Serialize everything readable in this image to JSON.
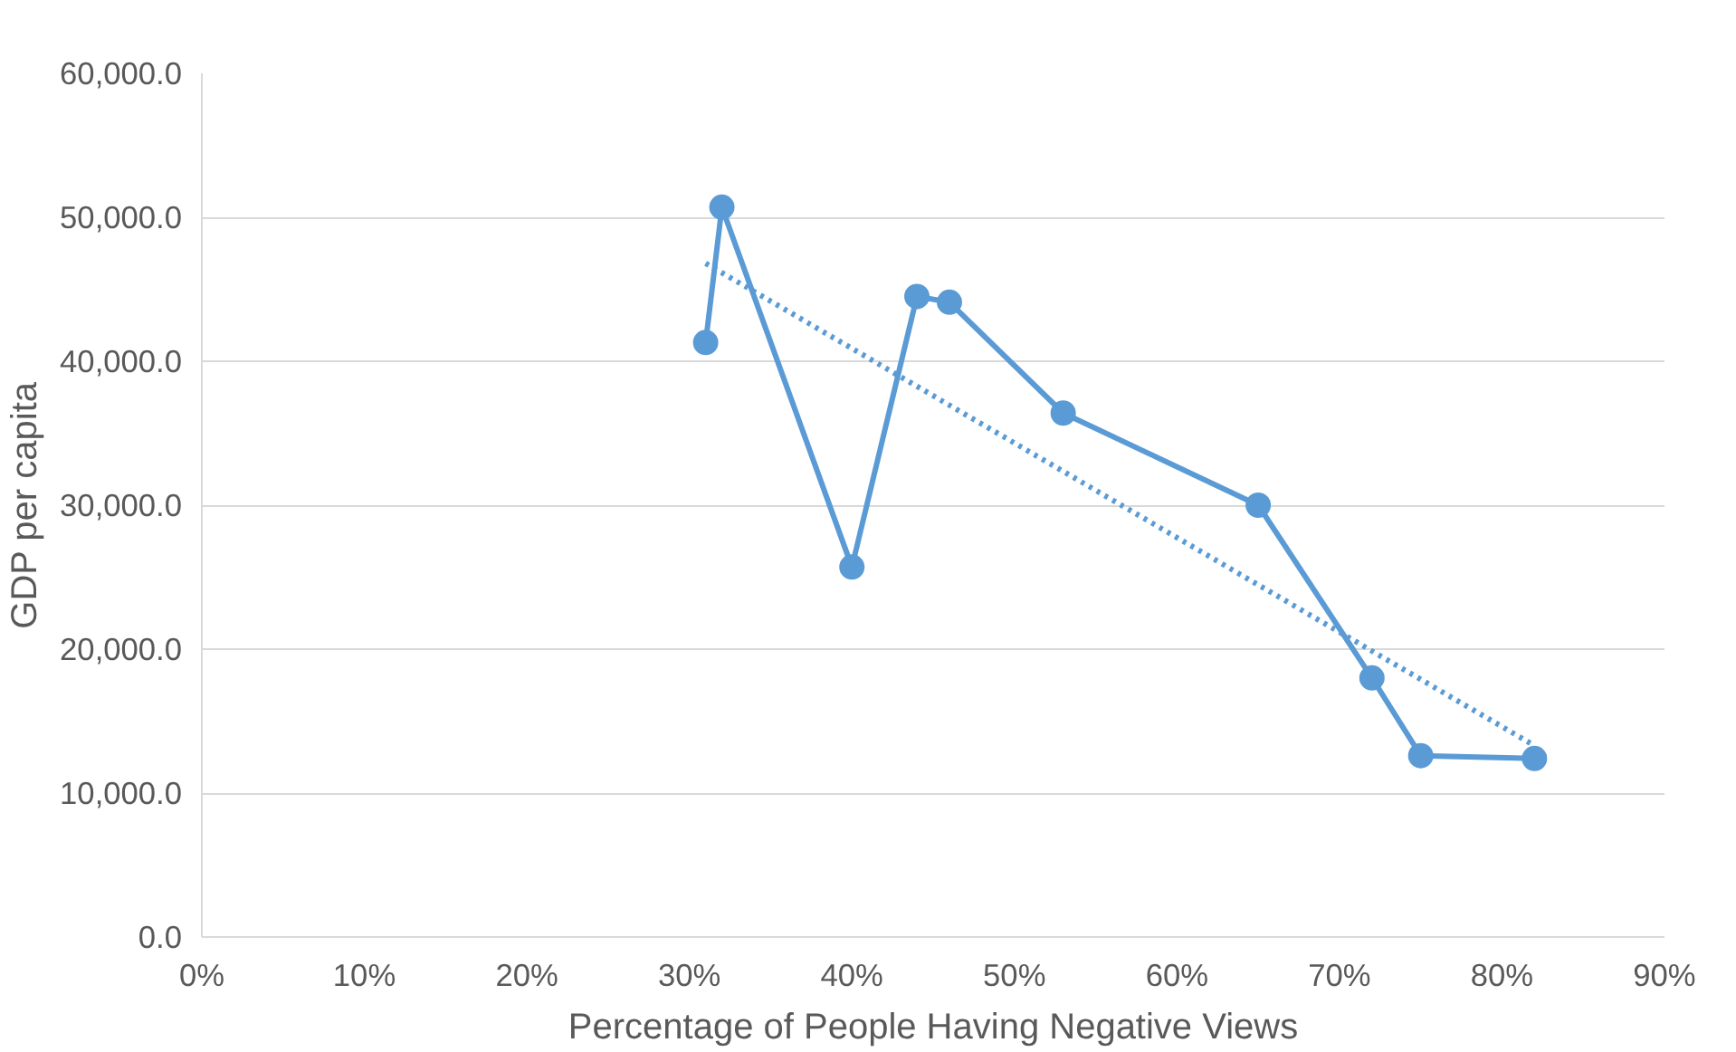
{
  "chart_data": {
    "type": "line",
    "xlabel": "Percentage of People Having Negative Views",
    "ylabel": "GDP per capita",
    "xlim": [
      0,
      90
    ],
    "xticks": [
      {
        "value": 0,
        "label": "0%"
      },
      {
        "value": 10,
        "label": "10%"
      },
      {
        "value": 20,
        "label": "20%"
      },
      {
        "value": 30,
        "label": "30%"
      },
      {
        "value": 40,
        "label": "40%"
      },
      {
        "value": 50,
        "label": "50%"
      },
      {
        "value": 60,
        "label": "60%"
      },
      {
        "value": 70,
        "label": "70%"
      },
      {
        "value": 80,
        "label": "80%"
      },
      {
        "value": 90,
        "label": "90%"
      }
    ],
    "ylim": [
      0,
      60000
    ],
    "yticks": [
      {
        "value": 0,
        "label": "0.0"
      },
      {
        "value": 10000,
        "label": "10,000.0"
      },
      {
        "value": 20000,
        "label": "20,000.0"
      },
      {
        "value": 30000,
        "label": "30,000.0"
      },
      {
        "value": 40000,
        "label": "40,000.0"
      },
      {
        "value": 50000,
        "label": "50,000.0"
      },
      {
        "value": 60000,
        "label": "60,000.0"
      }
    ],
    "grid": "y",
    "marker": "circle",
    "line_style": "solid",
    "series": [
      {
        "color": "#5b9bd5",
        "x": [
          31,
          32,
          40,
          44,
          46,
          53,
          65,
          72,
          75,
          82
        ],
        "values": [
          41300,
          50700,
          25700,
          44500,
          44100,
          36400,
          30000,
          18000,
          12600,
          12400
        ]
      },
      {
        "type": "line",
        "color": "#5b9bd5",
        "marker": "none",
        "line_style": "dotted",
        "x": [
          31,
          82
        ],
        "values": [
          46800,
          13300
        ]
      }
    ]
  }
}
